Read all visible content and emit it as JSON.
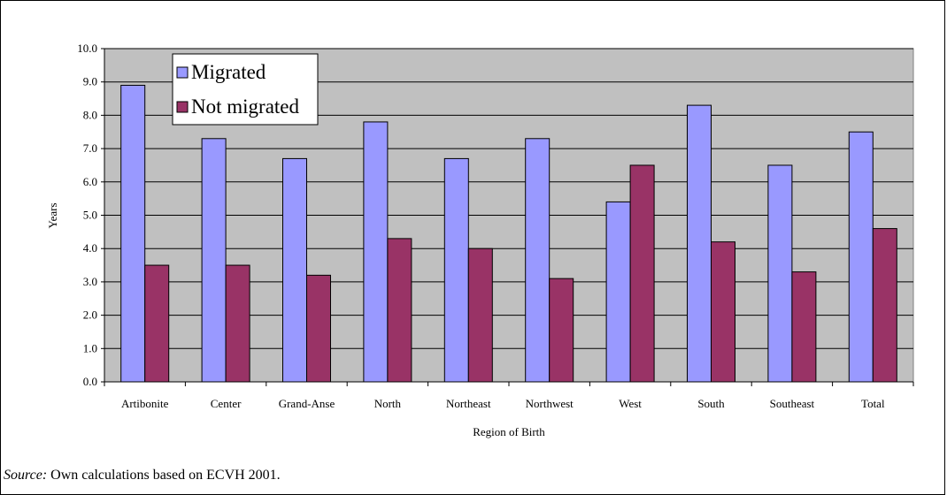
{
  "chart_data": {
    "type": "bar",
    "title": "",
    "xlabel": "Region of Birth",
    "ylabel": "Years",
    "ylim": [
      0,
      10
    ],
    "yticks": [
      "0.0",
      "1.0",
      "2.0",
      "3.0",
      "4.0",
      "5.0",
      "6.0",
      "7.0",
      "8.0",
      "9.0",
      "10.0"
    ],
    "grid": true,
    "legend_position": "top-left",
    "categories": [
      "Artibonite",
      "Center",
      "Grand-Anse",
      "North",
      "Northeast",
      "Northwest",
      "West",
      "South",
      "Southeast",
      "Total"
    ],
    "series": [
      {
        "name": "Migrated",
        "color": "#9999ff",
        "values": [
          8.9,
          7.3,
          6.7,
          7.8,
          6.7,
          7.3,
          5.4,
          8.3,
          6.5,
          7.5
        ]
      },
      {
        "name": "Not migrated",
        "color": "#993366",
        "values": [
          3.5,
          3.5,
          3.2,
          4.3,
          4.0,
          3.1,
          6.5,
          4.2,
          3.3,
          4.6
        ]
      }
    ],
    "plot_background": "#c0c0c0"
  },
  "caption": {
    "source_label": "Source:",
    "source_text": " Own calculations based on ECVH 2001."
  }
}
